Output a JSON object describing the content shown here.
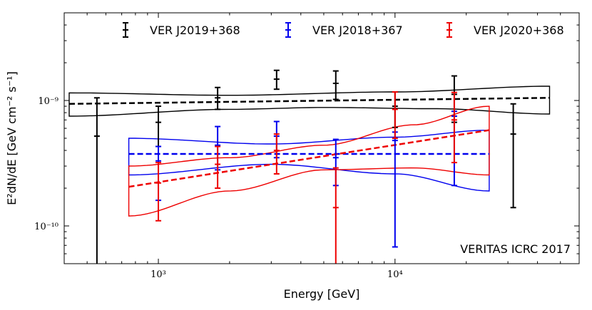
{
  "chart_data": {
    "type": "scatter",
    "title": "",
    "xlabel": "Energy [GeV]",
    "ylabel": "E²dN/dE [GeV cm⁻² s⁻¹]",
    "xscale": "log",
    "yscale": "log",
    "xlim": [
      400,
      60000
    ],
    "ylim": [
      5e-11,
      5e-09
    ],
    "x_ticks": [
      {
        "value": 1000,
        "label": "10³"
      },
      {
        "value": 10000,
        "label": "10⁴"
      }
    ],
    "y_ticks": [
      {
        "value": 1e-10,
        "label": "10⁻¹⁰"
      },
      {
        "value": 1e-09,
        "label": "10⁻⁹"
      }
    ],
    "legend_position": "top",
    "annotation": "VERITAS ICRC 2017",
    "series": [
      {
        "name": "VER J2019+368",
        "color": "#000000",
        "points": [
          {
            "x": 550,
            "y": 5.2e-10,
            "lo": 5e-11,
            "hi": 1.05e-09
          },
          {
            "x": 1000,
            "y": 6.7e-10,
            "lo": 4.3e-10,
            "hi": 9e-10
          },
          {
            "x": 1780,
            "y": 1.05e-09,
            "lo": 8.5e-10,
            "hi": 1.27e-09
          },
          {
            "x": 3160,
            "y": 1.48e-09,
            "lo": 1.23e-09,
            "hi": 1.74e-09
          },
          {
            "x": 5620,
            "y": 1.37e-09,
            "lo": 1.02e-09,
            "hi": 1.72e-09
          },
          {
            "x": 10000,
            "y": 9e-10,
            "lo": 6.1e-10,
            "hi": 1.17e-09
          },
          {
            "x": 17800,
            "y": 1.12e-09,
            "lo": 6.7e-10,
            "hi": 1.57e-09
          },
          {
            "x": 31600,
            "y": 5.4e-10,
            "lo": 1.4e-10,
            "hi": 9.4e-10
          }
        ],
        "fit": {
          "range": [
            420,
            45000
          ],
          "y_start": 9.4e-10,
          "y_end": 1.05e-09
        },
        "band_upper": [
          [
            420,
            1.15e-09
          ],
          [
            2000,
            1.1e-09
          ],
          [
            10000,
            1.17e-09
          ],
          [
            45000,
            1.3e-09
          ]
        ],
        "band_lower": [
          [
            420,
            7.5e-10
          ],
          [
            2000,
            8.5e-10
          ],
          [
            5000,
            8.8e-10
          ],
          [
            15000,
            8.6e-10
          ],
          [
            45000,
            7.8e-10
          ]
        ]
      },
      {
        "name": "VER J2018+367",
        "color": "#0000ee",
        "points": [
          {
            "x": 1000,
            "y": 3.3e-10,
            "lo": 1.6e-10,
            "hi": 4.3e-10
          },
          {
            "x": 1780,
            "y": 4.4e-10,
            "lo": 2.8e-10,
            "hi": 6.2e-10
          },
          {
            "x": 3160,
            "y": 5.2e-10,
            "lo": 3.5e-10,
            "hi": 6.8e-10
          },
          {
            "x": 5620,
            "y": 3.5e-10,
            "lo": 2.1e-10,
            "hi": 4.9e-10
          },
          {
            "x": 10000,
            "y": 4.8e-10,
            "lo": 6.8e-11,
            "hi": 5.6e-10
          },
          {
            "x": 17800,
            "y": 7.5e-10,
            "lo": 2.1e-10,
            "hi": 8.2e-10
          }
        ],
        "fit": {
          "range": [
            750,
            25000
          ],
          "y_start": 3.75e-10,
          "y_end": 3.75e-10
        },
        "band_upper": [
          [
            750,
            5e-10
          ],
          [
            3000,
            4.5e-10
          ],
          [
            10000,
            5.1e-10
          ],
          [
            25000,
            5.8e-10
          ]
        ],
        "band_lower": [
          [
            750,
            2.55e-10
          ],
          [
            3000,
            3.1e-10
          ],
          [
            10000,
            2.6e-10
          ],
          [
            25000,
            1.9e-10
          ]
        ]
      },
      {
        "name": "VER J2020+368",
        "color": "#ee0000",
        "points": [
          {
            "x": 1000,
            "y": 2.2e-10,
            "lo": 1.1e-10,
            "hi": 3.2e-10
          },
          {
            "x": 1780,
            "y": 3.1e-10,
            "lo": 2e-10,
            "hi": 4.3e-10
          },
          {
            "x": 3160,
            "y": 4e-10,
            "lo": 2.6e-10,
            "hi": 5.4e-10
          },
          {
            "x": 5620,
            "y": 1.4e-10,
            "lo": 5e-11,
            "hi": 2.9e-10
          },
          {
            "x": 10000,
            "y": 8.5e-10,
            "lo": 5e-10,
            "hi": 1.17e-09
          },
          {
            "x": 17800,
            "y": 7e-10,
            "lo": 3.2e-10,
            "hi": 1.16e-09
          }
        ],
        "fit": {
          "range": [
            750,
            25000
          ],
          "y_start": 2.05e-10,
          "y_end": 5.8e-10
        },
        "band_upper": [
          [
            750,
            3e-10
          ],
          [
            2000,
            3.5e-10
          ],
          [
            5000,
            4.4e-10
          ],
          [
            12000,
            6.4e-10
          ],
          [
            25000,
            9e-10
          ]
        ],
        "band_lower": [
          [
            750,
            1.2e-10
          ],
          [
            2000,
            1.9e-10
          ],
          [
            5000,
            2.8e-10
          ],
          [
            12000,
            2.9e-10
          ],
          [
            25000,
            2.55e-10
          ]
        ]
      }
    ]
  }
}
